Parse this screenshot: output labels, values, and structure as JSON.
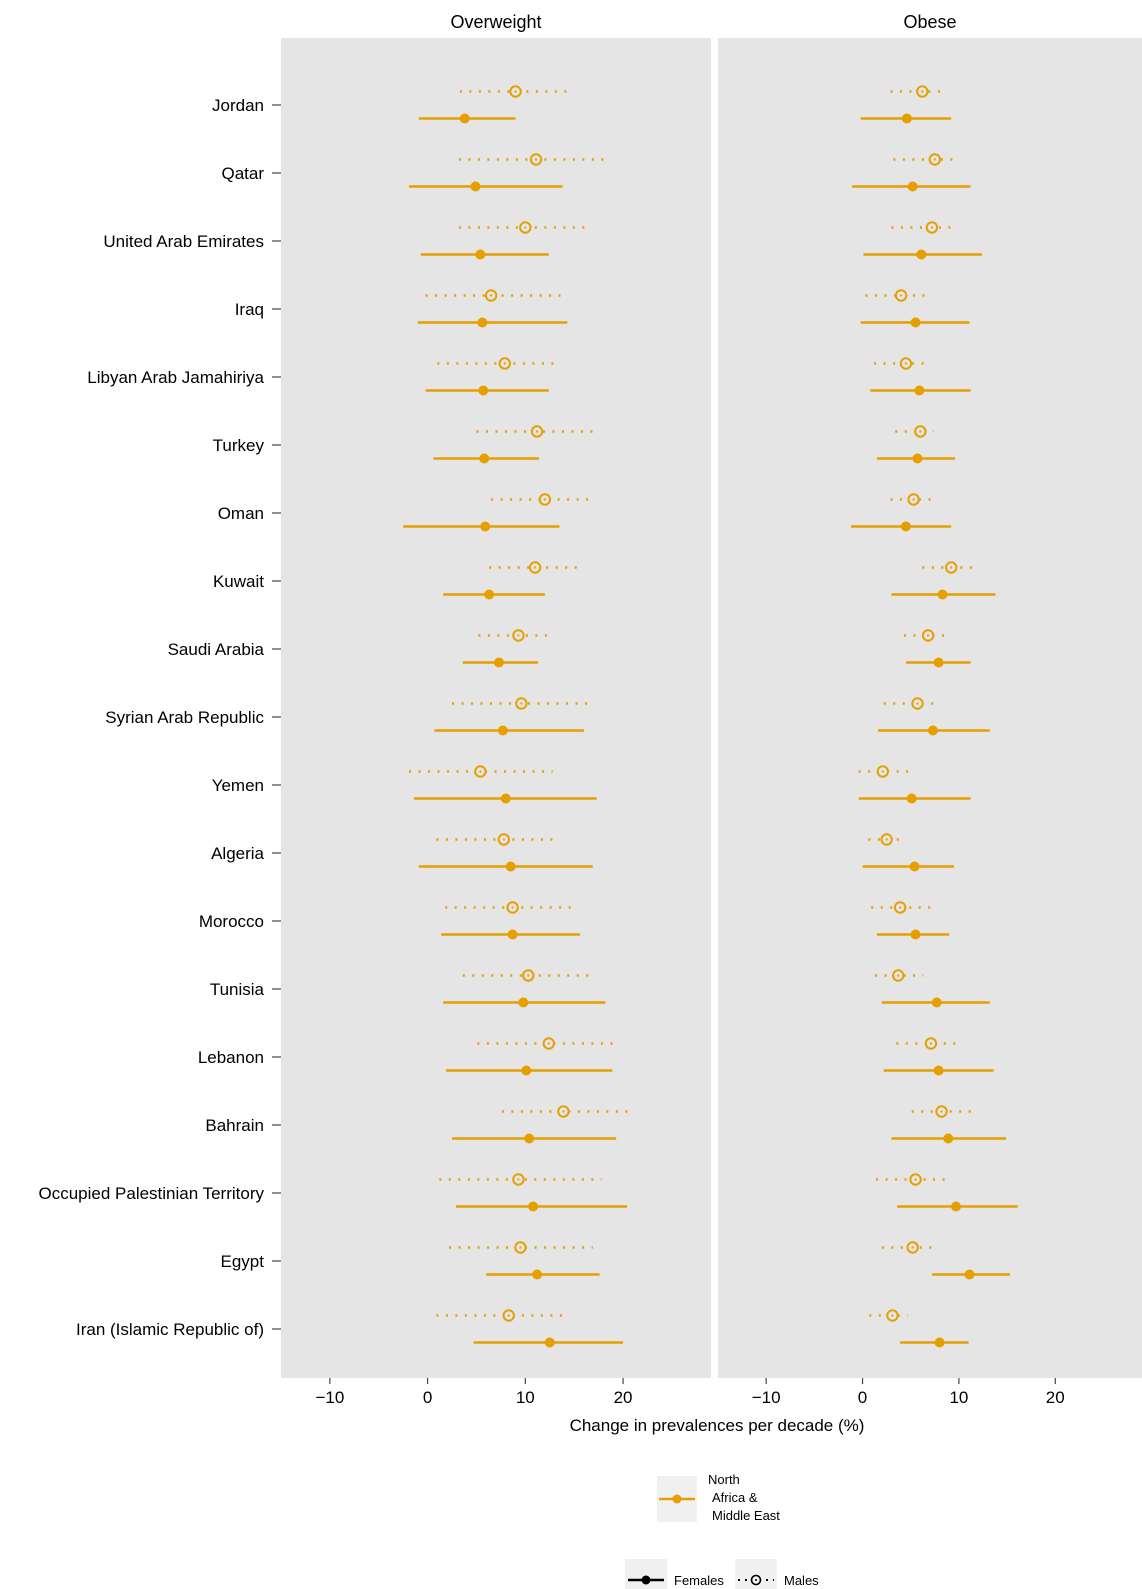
{
  "chart_data": {
    "type": "dot-range",
    "xlabel": "Change in prevalences per decade (%)",
    "xlim": [
      -15,
      29
    ],
    "xticks": [
      -10,
      0,
      10,
      20
    ],
    "grid": false,
    "panels": [
      "Overweight",
      "Obese"
    ],
    "categories": [
      "Jordan",
      "Qatar",
      "United Arab Emirates",
      "Iraq",
      "Libyan Arab Jamahiriya",
      "Turkey",
      "Oman",
      "Kuwait",
      "Saudi Arabia",
      "Syrian Arab Republic",
      "Yemen",
      "Algeria",
      "Morocco",
      "Tunisia",
      "Lebanon",
      "Bahrain",
      "Occupied Palestinian Territory",
      "Egypt",
      "Iran (Islamic Republic of)"
    ],
    "series": [
      {
        "name": "Females",
        "style": "solid",
        "Overweight": [
          [
            3.8,
            -0.9,
            9.0
          ],
          [
            4.9,
            -1.9,
            13.8
          ],
          [
            5.4,
            -0.7,
            12.4
          ],
          [
            5.6,
            -1.0,
            14.3
          ],
          [
            5.7,
            -0.2,
            12.4
          ],
          [
            5.8,
            0.6,
            11.4
          ],
          [
            5.9,
            -2.5,
            13.5
          ],
          [
            6.3,
            1.6,
            12.0
          ],
          [
            7.3,
            3.6,
            11.3
          ],
          [
            7.7,
            0.7,
            16.0
          ],
          [
            8.0,
            -1.4,
            17.3
          ],
          [
            8.5,
            -0.9,
            16.9
          ],
          [
            8.7,
            1.4,
            15.6
          ],
          [
            9.8,
            1.6,
            18.2
          ],
          [
            10.1,
            1.9,
            18.9
          ],
          [
            10.4,
            2.5,
            19.3
          ],
          [
            10.8,
            2.9,
            20.4
          ],
          [
            11.2,
            6.0,
            17.6
          ],
          [
            12.5,
            4.7,
            20.0
          ]
        ],
        "Obese": [
          [
            4.6,
            -0.2,
            9.2
          ],
          [
            5.2,
            -1.1,
            11.2
          ],
          [
            6.1,
            0.1,
            12.4
          ],
          [
            5.5,
            -0.2,
            11.1
          ],
          [
            5.9,
            0.8,
            11.2
          ],
          [
            5.7,
            1.5,
            9.6
          ],
          [
            4.5,
            -1.2,
            9.2
          ],
          [
            8.3,
            3.0,
            13.8
          ],
          [
            7.9,
            4.5,
            11.2
          ],
          [
            7.3,
            1.6,
            13.2
          ],
          [
            5.1,
            -0.4,
            11.2
          ],
          [
            5.4,
            0.0,
            9.5
          ],
          [
            5.5,
            1.5,
            9.0
          ],
          [
            7.7,
            2.0,
            13.2
          ],
          [
            7.9,
            2.2,
            13.6
          ],
          [
            8.9,
            3.0,
            14.9
          ],
          [
            9.7,
            3.6,
            16.1
          ],
          [
            11.1,
            7.2,
            15.3
          ],
          [
            8.0,
            3.9,
            11.0
          ]
        ]
      },
      {
        "name": "Males",
        "style": "dotted",
        "Overweight": [
          [
            9.0,
            3.3,
            14.4
          ],
          [
            11.1,
            3.2,
            18.0
          ],
          [
            10.0,
            3.2,
            16.3
          ],
          [
            6.5,
            -0.2,
            13.6
          ],
          [
            7.9,
            1.0,
            13.2
          ],
          [
            11.2,
            5.0,
            17.2
          ],
          [
            12.0,
            6.5,
            16.8
          ],
          [
            11.0,
            6.3,
            15.6
          ],
          [
            9.3,
            5.2,
            12.8
          ],
          [
            9.6,
            2.5,
            16.5
          ],
          [
            5.4,
            -1.9,
            12.8
          ],
          [
            7.8,
            0.9,
            13.4
          ],
          [
            8.7,
            1.8,
            15.4
          ],
          [
            10.3,
            3.6,
            16.7
          ],
          [
            12.4,
            5.1,
            19.0
          ],
          [
            13.9,
            7.6,
            20.5
          ],
          [
            9.3,
            1.2,
            17.8
          ],
          [
            9.5,
            2.2,
            16.9
          ],
          [
            8.3,
            0.9,
            14.0
          ]
        ],
        "Obese": [
          [
            6.2,
            2.9,
            8.6
          ],
          [
            7.5,
            3.2,
            9.9
          ],
          [
            7.2,
            3.0,
            9.7
          ],
          [
            4.0,
            0.3,
            7.0
          ],
          [
            4.5,
            1.2,
            6.5
          ],
          [
            6.0,
            3.4,
            7.4
          ],
          [
            5.3,
            2.9,
            7.7
          ],
          [
            9.2,
            6.2,
            11.9
          ],
          [
            6.8,
            4.3,
            8.9
          ],
          [
            5.7,
            2.2,
            8.0
          ],
          [
            2.1,
            -0.4,
            5.3
          ],
          [
            2.5,
            0.6,
            4.4
          ],
          [
            3.9,
            0.9,
            7.6
          ],
          [
            3.7,
            1.3,
            6.3
          ],
          [
            7.1,
            3.5,
            10.0
          ],
          [
            8.2,
            5.1,
            11.5
          ],
          [
            5.5,
            1.4,
            8.9
          ],
          [
            5.2,
            2.0,
            7.7
          ],
          [
            3.1,
            0.7,
            4.7
          ]
        ]
      }
    ],
    "legend": {
      "region": [
        "North",
        "Africa &",
        "Middle East"
      ],
      "series": [
        "Females",
        "Males"
      ],
      "placement": "bottom"
    },
    "colors": {
      "series": "#E69F00",
      "panel_bg": "#E5E5E5",
      "legend_key_bg": "#F0F0F0",
      "text": "#000000",
      "axis": "#444444"
    }
  }
}
